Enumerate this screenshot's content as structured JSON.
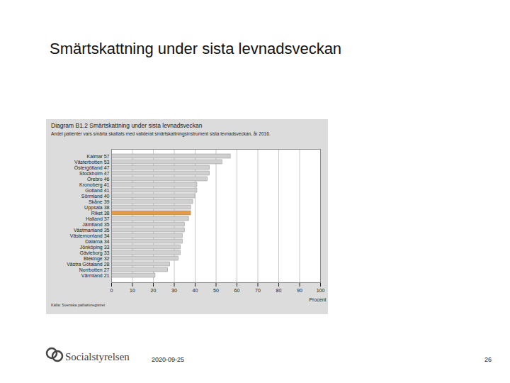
{
  "slide": {
    "title": "Smärtskattning under sista levnadsveckan",
    "logo": "Socialstyrelsen",
    "date": "2020-09-25",
    "page": "26"
  },
  "chart_data": {
    "type": "bar",
    "orientation": "horizontal",
    "title": "Diagram B1.2 Smärtskattning under sista levnadsveckan",
    "subtitle": "Andel patienter vars smärta skattats med validerat smärtskattningsinstrument sista levnadsveckan, år 2016.",
    "xlabel": "Procent",
    "source": "Källa: Svenska palliativregistret",
    "categories": [
      "Kalmar 57",
      "Västerbotten 53",
      "Östergötland 47",
      "Stockholm 47",
      "Örebro 46",
      "Kronoberg 41",
      "Gotland 41",
      "Sörmland 40",
      "Skåne 39",
      "Uppsala 38",
      "Riket 38",
      "Halland 37",
      "Jämtland 35",
      "Västmanland 35",
      "Västernorrland 34",
      "Dalarna 34",
      "Jönköping 33",
      "Gävleborg 33",
      "Blekinge 32",
      "Västra Götaland 28",
      "Norrbotten 27",
      "Värmland 21"
    ],
    "values": [
      57,
      53,
      47,
      47,
      46,
      41,
      41,
      40,
      39,
      38,
      38,
      37,
      35,
      35,
      34,
      34,
      33,
      33,
      32,
      28,
      27,
      21
    ],
    "colors": [
      "#d0d0d0",
      "#d0d0d0",
      "#d0d0d0",
      "#d0d0d0",
      "#d0d0d0",
      "#d0d0d0",
      "#d0d0d0",
      "#d0d0d0",
      "#d0d0d0",
      "#d0d0d0",
      "#e39a4a",
      "#d0d0d0",
      "#d0d0d0",
      "#d0d0d0",
      "#d0d0d0",
      "#d0d0d0",
      "#d0d0d0",
      "#d0d0d0",
      "#d0d0d0",
      "#d0d0d0",
      "#d0d0d0",
      "#d0d0d0"
    ],
    "xlim": [
      0,
      100
    ],
    "xticks": [
      0,
      10,
      20,
      30,
      40,
      50,
      60,
      70,
      80,
      90,
      100
    ],
    "grid": true
  }
}
